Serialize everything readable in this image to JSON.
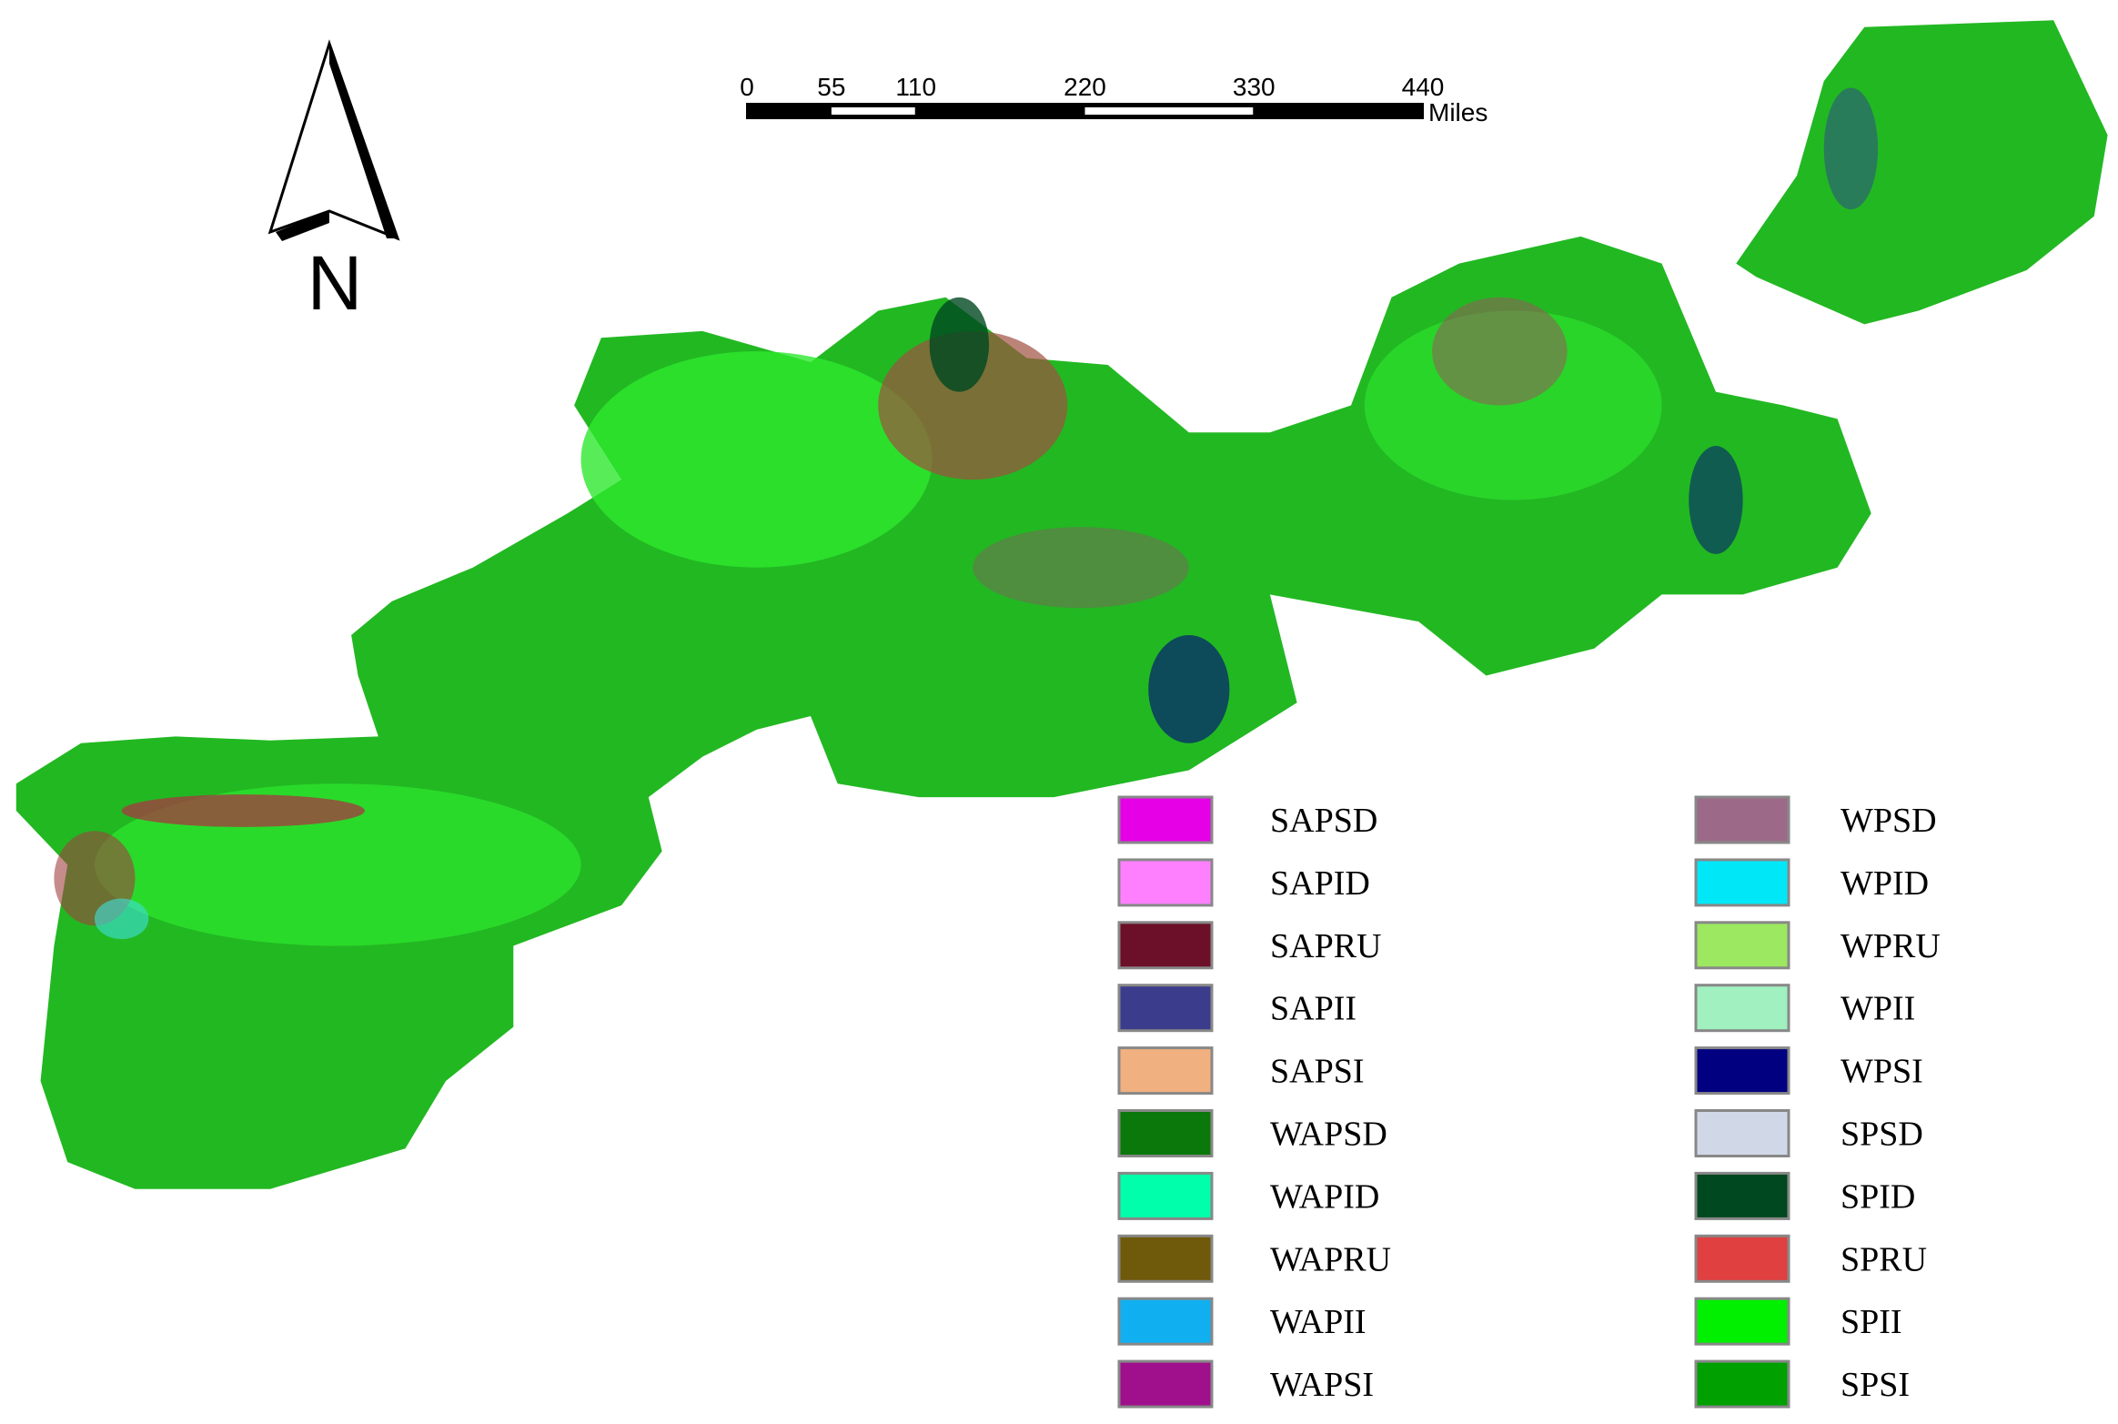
{
  "north_arrow": {
    "label": "N"
  },
  "scale_bar": {
    "ticks": [
      0,
      55,
      110,
      220,
      330,
      440
    ],
    "unit": "Miles"
  },
  "legend": {
    "items": [
      {
        "name": "SAPSD",
        "color": "#e600e6"
      },
      {
        "name": "SAPID",
        "color": "#ff80ff"
      },
      {
        "name": "SAPRU",
        "color": "#6b1028"
      },
      {
        "name": "SAPII",
        "color": "#3c3c8c"
      },
      {
        "name": "SAPSI",
        "color": "#f0b080"
      },
      {
        "name": "WAPSD",
        "color": "#0a780a"
      },
      {
        "name": "WAPID",
        "color": "#00ffaa"
      },
      {
        "name": "WAPRU",
        "color": "#6e5a0a"
      },
      {
        "name": "WAPII",
        "color": "#10b0f0"
      },
      {
        "name": "WAPSI",
        "color": "#a0108c"
      },
      {
        "name": "WPSD",
        "color": "#9c6a88"
      },
      {
        "name": "WPID",
        "color": "#00e8f8"
      },
      {
        "name": "WPRU",
        "color": "#9ce860"
      },
      {
        "name": "WPII",
        "color": "#a0f0c0"
      },
      {
        "name": "WPSI",
        "color": "#000080"
      },
      {
        "name": "SPSD",
        "color": "#d0d8e8"
      },
      {
        "name": "SPID",
        "color": "#004820"
      },
      {
        "name": "SPRU",
        "color": "#e04040"
      },
      {
        "name": "SPII",
        "color": "#00f000"
      },
      {
        "name": "SPSI",
        "color": "#00a000"
      }
    ]
  }
}
